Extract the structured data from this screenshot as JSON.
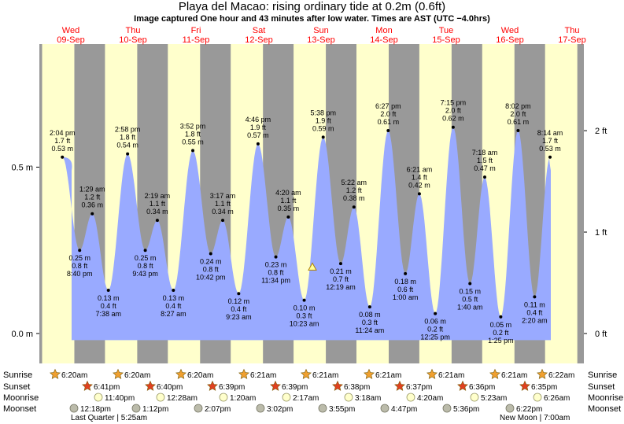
{
  "title": "Playa del Macao: rising  ordinary tide at 0.2m (0.6ft)",
  "subtitle": "Image captured One hour and 43 minutes after low water. Times are AST (UTC −4.0hrs)",
  "colors": {
    "night": "#999999",
    "day": "#ffffcc",
    "tide_fill": "#99aaff",
    "date_text": "#ff0000",
    "marker_fill": "#ffff99",
    "marker_stroke": "#b08000"
  },
  "chart_data": {
    "type": "area",
    "title": "Playa del Macao: rising  ordinary tide at 0.2m (0.6ft)",
    "ylim": [
      -0.09,
      0.87
    ],
    "y_left_ticks": [
      {
        "v": 0.0,
        "label": "0.0 m"
      },
      {
        "v": 0.5,
        "label": "0.5 m"
      }
    ],
    "y_right_ticks": [
      {
        "v": 0.0,
        "label": "0 ft"
      },
      {
        "v": 0.3048,
        "label": "1 ft"
      },
      {
        "v": 0.6096,
        "label": "2 ft"
      }
    ],
    "days": [
      {
        "dow": "Wed",
        "date": "09-Sep"
      },
      {
        "dow": "Thu",
        "date": "10-Sep"
      },
      {
        "dow": "Fri",
        "date": "11-Sep"
      },
      {
        "dow": "Sat",
        "date": "12-Sep"
      },
      {
        "dow": "Sun",
        "date": "13-Sep"
      },
      {
        "dow": "Mon",
        "date": "14-Sep"
      },
      {
        "dow": "Tue",
        "date": "15-Sep"
      },
      {
        "dow": "Wed",
        "date": "16-Sep"
      },
      {
        "dow": "Thu",
        "date": "17-Sep"
      }
    ],
    "extremes": [
      {
        "kind": "high",
        "time": "2:04 pm",
        "ft": "1.7 ft",
        "m": "0.53 m",
        "v": 0.53
      },
      {
        "kind": "low",
        "time": "8:40 pm",
        "ft": "0.8 ft",
        "m": "0.25 m",
        "v": 0.25
      },
      {
        "kind": "high",
        "time": "1:29 am",
        "ft": "1.2 ft",
        "m": "0.36 m",
        "v": 0.36
      },
      {
        "kind": "low",
        "time": "7:38 am",
        "ft": "0.4 ft",
        "m": "0.13 m",
        "v": 0.13
      },
      {
        "kind": "high",
        "time": "2:58 pm",
        "ft": "1.8 ft",
        "m": "0.54 m",
        "v": 0.54
      },
      {
        "kind": "low",
        "time": "9:43 pm",
        "ft": "0.8 ft",
        "m": "0.25 m",
        "v": 0.25
      },
      {
        "kind": "high",
        "time": "2:19 am",
        "ft": "1.1 ft",
        "m": "0.34 m",
        "v": 0.34
      },
      {
        "kind": "low",
        "time": "8:27 am",
        "ft": "0.4 ft",
        "m": "0.13 m",
        "v": 0.13
      },
      {
        "kind": "high",
        "time": "3:52 pm",
        "ft": "1.8 ft",
        "m": "0.55 m",
        "v": 0.55
      },
      {
        "kind": "low",
        "time": "10:42 pm",
        "ft": "0.8 ft",
        "m": "0.24 m",
        "v": 0.24
      },
      {
        "kind": "high",
        "time": "3:17 am",
        "ft": "1.1 ft",
        "m": "0.34 m",
        "v": 0.34
      },
      {
        "kind": "low",
        "time": "9:23 am",
        "ft": "0.4 ft",
        "m": "0.12 m",
        "v": 0.12
      },
      {
        "kind": "high",
        "time": "4:46 pm",
        "ft": "1.9 ft",
        "m": "0.57 m",
        "v": 0.57
      },
      {
        "kind": "low",
        "time": "11:34 pm",
        "ft": "0.8 ft",
        "m": "0.23 m",
        "v": 0.23
      },
      {
        "kind": "high",
        "time": "4:20 am",
        "ft": "1.1 ft",
        "m": "0.35 m",
        "v": 0.35
      },
      {
        "kind": "low",
        "time": "10:23 am",
        "ft": "0.3 ft",
        "m": "0.10 m",
        "v": 0.1
      },
      {
        "kind": "high",
        "time": "5:38 pm",
        "ft": "1.9 ft",
        "m": "0.59 m",
        "v": 0.59
      },
      {
        "kind": "low",
        "time": "12:19 am",
        "ft": "0.7 ft",
        "m": "0.21 m",
        "v": 0.21
      },
      {
        "kind": "high",
        "time": "5:22 am",
        "ft": "1.2 ft",
        "m": "0.38 m",
        "v": 0.38
      },
      {
        "kind": "low",
        "time": "11:24 am",
        "ft": "0.3 ft",
        "m": "0.08 m",
        "v": 0.08
      },
      {
        "kind": "high",
        "time": "6:27 pm",
        "ft": "2.0 ft",
        "m": "0.61 m",
        "v": 0.61
      },
      {
        "kind": "low",
        "time": "1:00 am",
        "ft": "0.6 ft",
        "m": "0.18 m",
        "v": 0.18
      },
      {
        "kind": "high",
        "time": "6:21 am",
        "ft": "1.4 ft",
        "m": "0.42 m",
        "v": 0.42
      },
      {
        "kind": "low",
        "time": "12:25 pm",
        "ft": "0.2 ft",
        "m": "0.06 m",
        "v": 0.06
      },
      {
        "kind": "high",
        "time": "7:15 pm",
        "ft": "2.0 ft",
        "m": "0.62 m",
        "v": 0.62
      },
      {
        "kind": "low",
        "time": "1:40 am",
        "ft": "0.5 ft",
        "m": "0.15 m",
        "v": 0.15
      },
      {
        "kind": "high",
        "time": "7:18 am",
        "ft": "1.5 ft",
        "m": "0.47 m",
        "v": 0.47
      },
      {
        "kind": "low",
        "time": "1:25 pm",
        "ft": "0.2 ft",
        "m": "0.05 m",
        "v": 0.05
      },
      {
        "kind": "high",
        "time": "8:02 pm",
        "ft": "2.0 ft",
        "m": "0.61 m",
        "v": 0.61
      },
      {
        "kind": "low",
        "time": "2:20 am",
        "ft": "0.4 ft",
        "m": "0.11 m",
        "v": 0.11
      },
      {
        "kind": "high",
        "time": "8:14 am",
        "ft": "1.7 ft",
        "m": "0.53 m",
        "v": 0.53
      }
    ],
    "current": {
      "v": 0.2
    },
    "row_labels": [
      "Sunrise",
      "Sunset",
      "Moonrise",
      "Moonset"
    ],
    "sunrise": [
      "6:20am",
      "6:20am",
      "6:20am",
      "6:21am",
      "6:21am",
      "6:21am",
      "6:21am",
      "6:21am",
      "6:22am"
    ],
    "sunset": [
      "6:41pm",
      "6:40pm",
      "6:39pm",
      "6:39pm",
      "6:38pm",
      "6:37pm",
      "6:36pm",
      "6:35pm"
    ],
    "moonrise": [
      "11:40pm",
      "12:28am",
      "1:20am",
      "2:17am",
      "3:18am",
      "4:20am",
      "5:23am",
      "6:26am"
    ],
    "moonset": [
      "12:18pm",
      "1:12pm",
      "2:07pm",
      "3:02pm",
      "3:55pm",
      "4:47pm",
      "5:36pm",
      "6:22pm"
    ],
    "moon_phases": [
      "Last Quarter | 5:25am",
      "New Moon | 7:00am"
    ]
  }
}
